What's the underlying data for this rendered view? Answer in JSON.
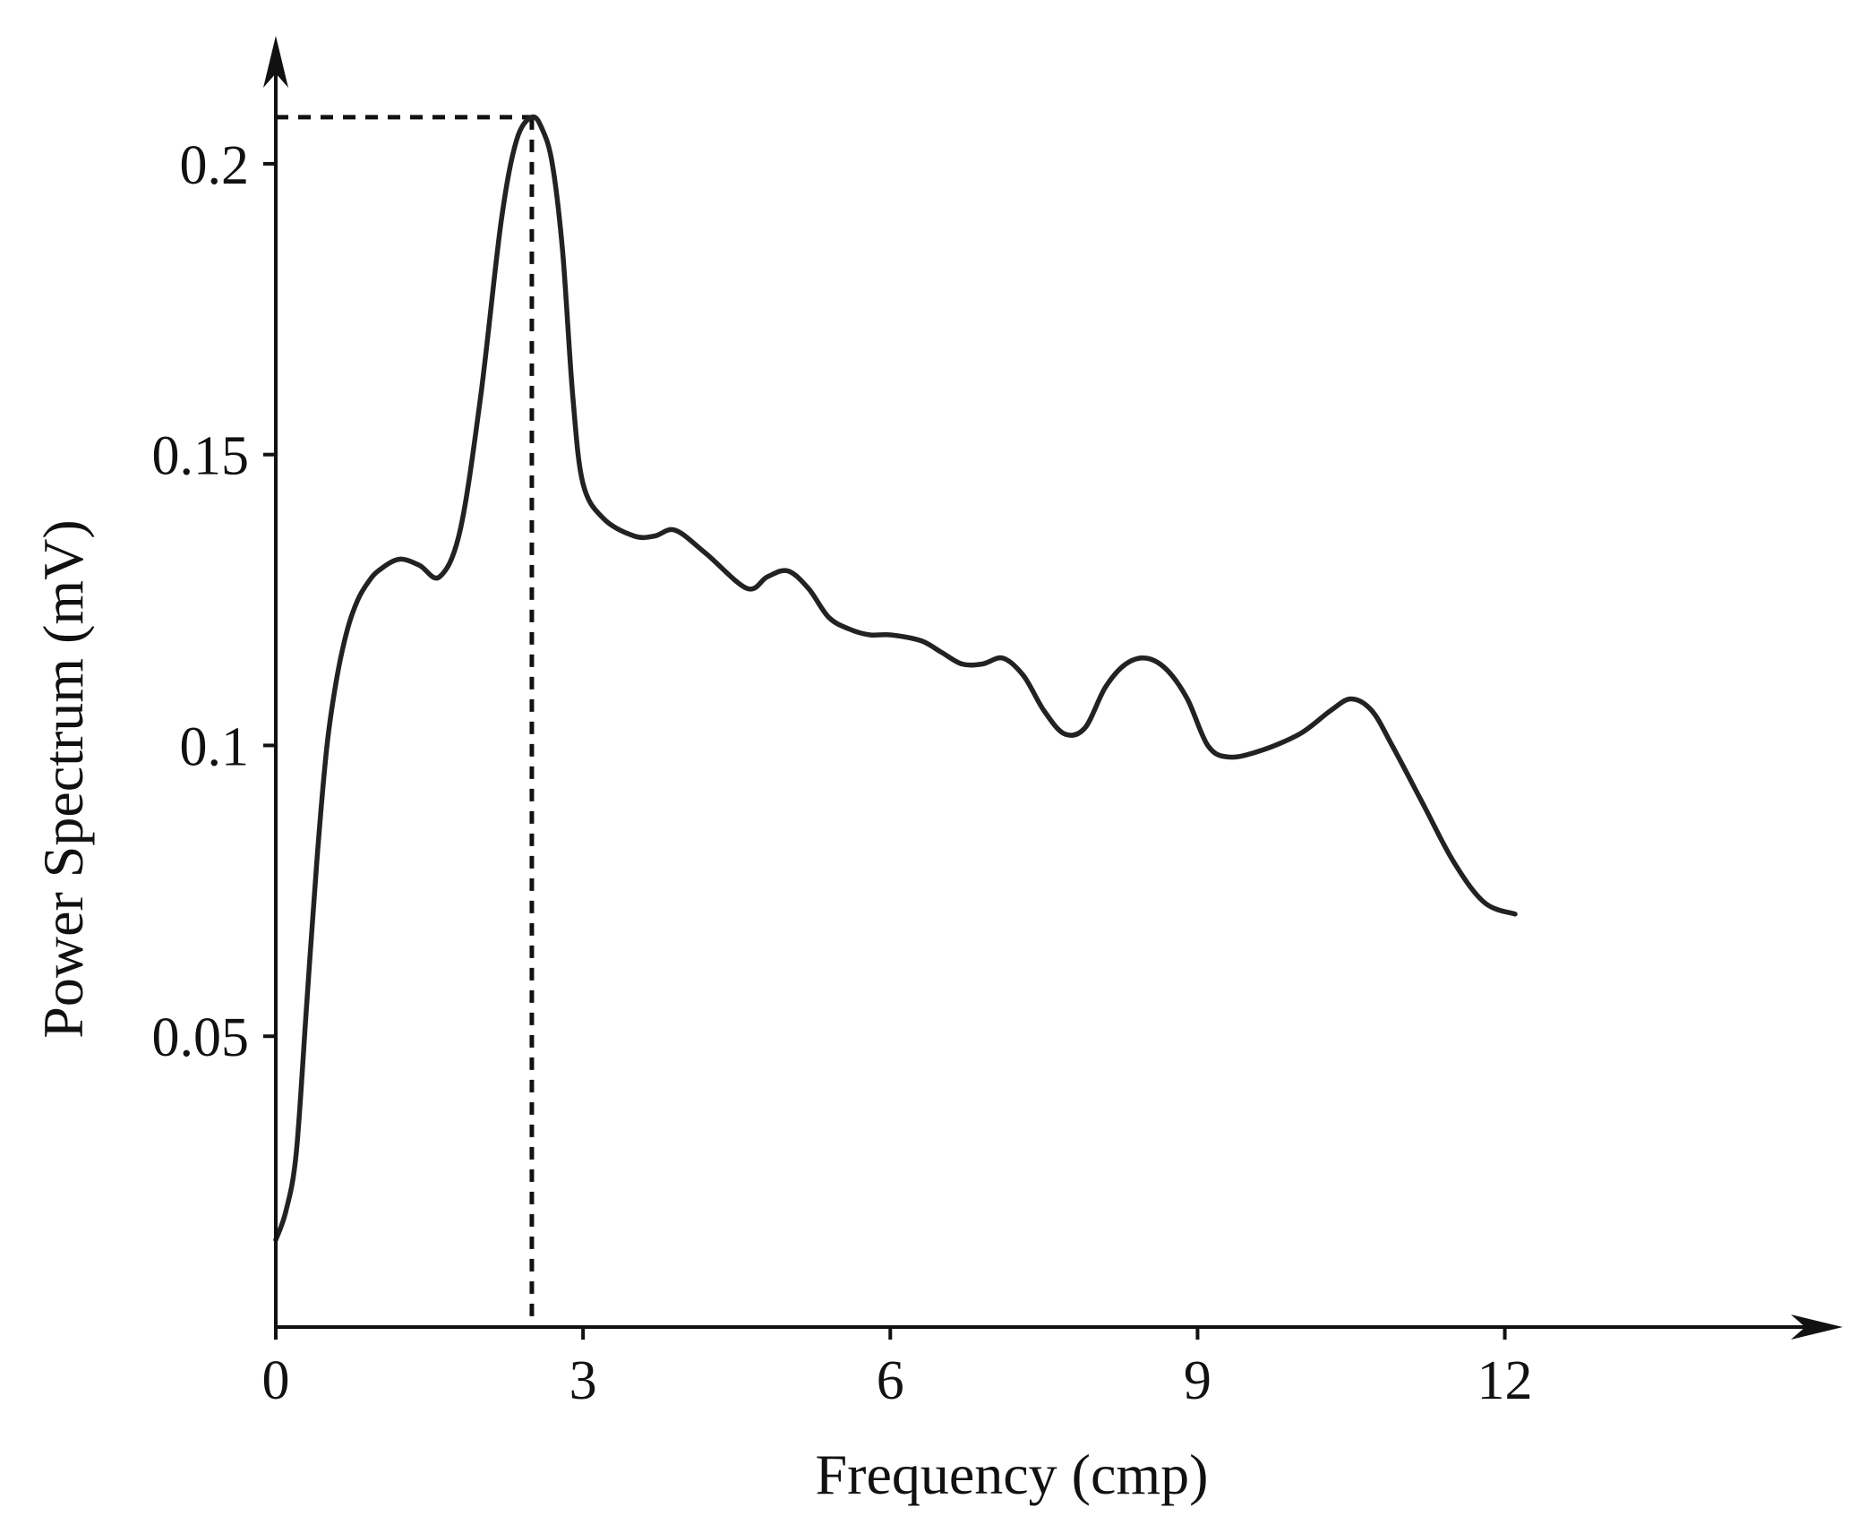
{
  "chart_data": {
    "type": "line",
    "title": "",
    "xlabel": "Frequency (cmp)",
    "ylabel": "Power Spectrum (mV)",
    "xlim": [
      0,
      15.3
    ],
    "ylim": [
      0,
      0.222
    ],
    "x_ticks": [
      {
        "value": 0,
        "label": "0"
      },
      {
        "value": 3,
        "label": "3"
      },
      {
        "value": 6,
        "label": "6"
      },
      {
        "value": 9,
        "label": "9"
      },
      {
        "value": 12,
        "label": "12"
      }
    ],
    "y_ticks": [
      {
        "value": 0.05,
        "label": "0.05"
      },
      {
        "value": 0.1,
        "label": "0.1"
      },
      {
        "value": 0.15,
        "label": "0.15"
      },
      {
        "value": 0.2,
        "label": "0.2"
      }
    ],
    "grid": false,
    "legend": "none",
    "series": [
      {
        "color": "#222222",
        "x": [
          0.0,
          0.1,
          0.2,
          0.3,
          0.4,
          0.5,
          0.6,
          0.7,
          0.8,
          0.9,
          1.0,
          1.2,
          1.4,
          1.6,
          1.8,
          2.0,
          2.2,
          2.35,
          2.5,
          2.6,
          2.7,
          2.8,
          2.9,
          3.0,
          3.2,
          3.5,
          3.7,
          3.9,
          4.2,
          4.6,
          4.8,
          5.0,
          5.2,
          5.4,
          5.6,
          5.8,
          6.0,
          6.3,
          6.5,
          6.7,
          6.9,
          7.1,
          7.3,
          7.5,
          7.7,
          7.9,
          8.1,
          8.3,
          8.5,
          8.7,
          8.9,
          9.1,
          9.3,
          9.6,
          10.0,
          10.3,
          10.5,
          10.7,
          10.9,
          11.2,
          11.5,
          11.8,
          12.1
        ],
        "y": [
          0.015,
          0.02,
          0.03,
          0.055,
          0.08,
          0.1,
          0.112,
          0.12,
          0.125,
          0.128,
          0.13,
          0.132,
          0.131,
          0.129,
          0.137,
          0.16,
          0.19,
          0.204,
          0.208,
          0.206,
          0.2,
          0.185,
          0.16,
          0.145,
          0.139,
          0.136,
          0.136,
          0.137,
          0.133,
          0.127,
          0.129,
          0.13,
          0.127,
          0.122,
          0.12,
          0.119,
          0.119,
          0.118,
          0.116,
          0.114,
          0.114,
          0.115,
          0.112,
          0.106,
          0.102,
          0.103,
          0.11,
          0.114,
          0.115,
          0.113,
          0.108,
          0.1,
          0.098,
          0.099,
          0.102,
          0.106,
          0.108,
          0.106,
          0.1,
          0.09,
          0.08,
          0.073,
          0.071
        ]
      }
    ],
    "annotations": [
      {
        "type": "dashed-vline",
        "x": 2.5,
        "y_top": 0.208
      },
      {
        "type": "dashed-hline",
        "y": 0.208,
        "x_end": 2.5
      }
    ]
  }
}
